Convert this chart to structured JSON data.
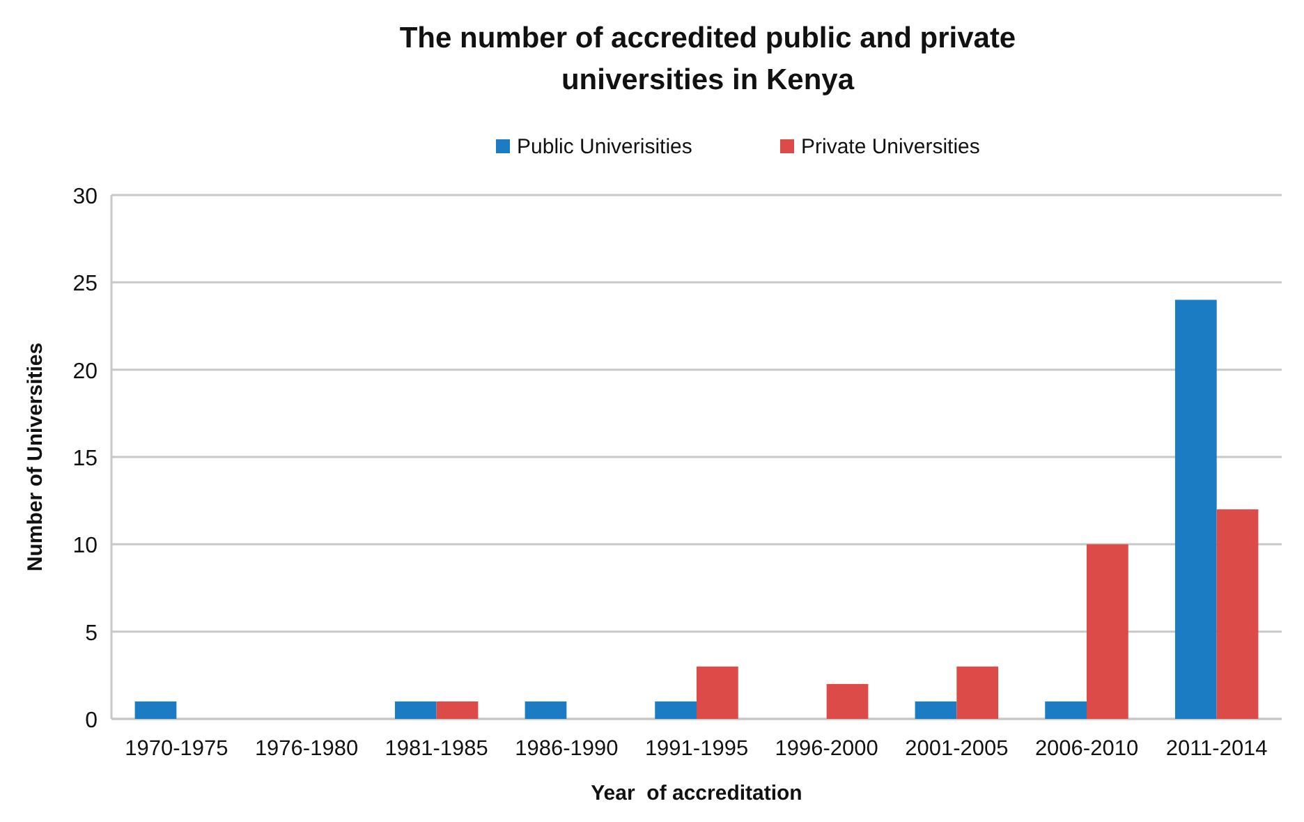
{
  "chart_data": {
    "type": "bar",
    "title": "The number of accredited public and private\nuniversities in Kenya",
    "xlabel": "Year  of accreditation",
    "ylabel": "Number of Universities",
    "categories": [
      "1970-1975",
      "1976-1980",
      "1981-1985",
      "1986-1990",
      "1991-1995",
      "1996-2000",
      "2001-2005",
      "2006-2010",
      "2011-2014"
    ],
    "series": [
      {
        "name": "Public Univerisities",
        "color": "#1b7cc3",
        "values": [
          1,
          0,
          1,
          1,
          1,
          0,
          1,
          1,
          24
        ]
      },
      {
        "name": "Private Universities",
        "color": "#dc4b48",
        "values": [
          0,
          0,
          1,
          0,
          3,
          2,
          3,
          10,
          12
        ]
      }
    ],
    "ylim": [
      0,
      30
    ],
    "yticks": [
      0,
      5,
      10,
      15,
      20,
      25,
      30
    ],
    "grid": "y",
    "legend": "top"
  }
}
